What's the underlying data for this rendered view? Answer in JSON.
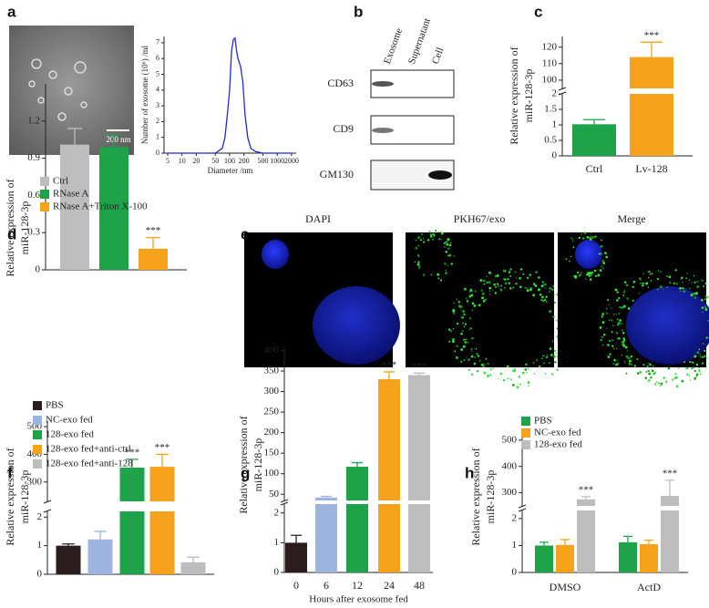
{
  "panel_labels": [
    "a",
    "b",
    "c",
    "d",
    "e",
    "f",
    "g",
    "h"
  ],
  "micrographs": {
    "scale_bar": "200 nm",
    "channels": [
      "DAPI",
      "PKH67/exo",
      "Merge"
    ]
  },
  "blot": {
    "lanes": [
      "Exosome",
      "Supernatant",
      "Cell"
    ],
    "proteins": [
      "CD63",
      "CD9",
      "GM130"
    ]
  },
  "chart_data": [
    {
      "type": "line",
      "x": [
        5,
        50,
        70,
        80,
        90,
        100,
        110,
        120,
        130,
        140,
        150,
        170,
        190,
        210,
        240,
        280,
        350,
        500,
        2000
      ],
      "series": [
        {
          "color": "#1f2bd0",
          "values": [
            0,
            0,
            0.3,
            1,
            2.5,
            4,
            6.5,
            7.2,
            7.3,
            6.5,
            6,
            5.5,
            4.5,
            2.5,
            1,
            0.3,
            0.1,
            0,
            0
          ]
        }
      ],
      "xlog": true,
      "xlim": [
        4.2,
        2500
      ],
      "xticks": [
        5,
        10,
        20,
        50,
        100,
        200,
        500,
        1000,
        2000
      ],
      "ylim": [
        0,
        7.4
      ],
      "yticks": [
        0,
        1,
        2,
        3,
        4,
        5,
        6,
        7
      ],
      "x_label": "Diameter /nm",
      "y_label": "Number of exosome (10⁶) /ml"
    },
    {
      "type": "bar",
      "categories": [
        "Ctrl",
        "Lv-128"
      ],
      "values": [
        1.02,
        114
      ],
      "errors": [
        0.15,
        9
      ],
      "colors": [
        "#1fa34a",
        "#f7a21b"
      ],
      "significance": [
        null,
        "***"
      ],
      "segments": [
        {
          "ylim": [
            0,
            2
          ],
          "yticks": [
            0,
            0.5,
            1,
            1.5,
            2
          ]
        },
        {
          "ylim": [
            95,
            126.5
          ],
          "yticks": [
            100,
            110,
            120
          ]
        }
      ],
      "y_label": [
        "Relative expression of",
        "miR-128-3p"
      ]
    },
    {
      "type": "bar",
      "categories": [
        null
      ],
      "series": [
        {
          "name": "Ctrl",
          "color": "#bdbdbd",
          "values": [
            1.01
          ],
          "errors": [
            0.13
          ],
          "significance": [
            null
          ]
        },
        {
          "name": "RNase A",
          "color": "#1fa34a",
          "values": [
            0.99
          ],
          "errors": [
            0.1
          ],
          "significance": [
            null
          ]
        },
        {
          "name": "RNase A+Triton X-100",
          "color": "#f7a21b",
          "values": [
            0.17
          ],
          "errors": [
            0.09
          ],
          "significance": [
            "***"
          ]
        }
      ],
      "segments": [
        {
          "ylim": [
            0,
            1.5
          ],
          "yticks": [
            0,
            0.3,
            0.6,
            0.9,
            1.2
          ]
        }
      ],
      "y_label": [
        "Relative expression of",
        "miR-128-3p"
      ]
    },
    {
      "type": "bar",
      "categories": [
        null
      ],
      "series": [
        {
          "name": "PBS",
          "color": "#2b1d1d",
          "values": [
            1.0
          ],
          "errors": [
            0.06
          ],
          "significance": [
            null
          ]
        },
        {
          "name": "NC-exo fed",
          "color": "#9db4e0",
          "values": [
            1.22
          ],
          "errors": [
            0.28
          ],
          "significance": [
            null
          ]
        },
        {
          "name": "128-exo fed",
          "color": "#1fa34a",
          "values": [
            352
          ],
          "errors": [
            30
          ],
          "significance": [
            "***"
          ]
        },
        {
          "name": "128-exo fed+anti-ctrl",
          "color": "#f7a21b",
          "values": [
            355
          ],
          "errors": [
            45
          ],
          "significance": [
            "***"
          ]
        },
        {
          "name": "128-exo fed+anti-128",
          "color": "#bdbdbd",
          "values": [
            0.42
          ],
          "errors": [
            0.18
          ],
          "significance": [
            null
          ]
        }
      ],
      "segments": [
        {
          "ylim": [
            0,
            2.2
          ],
          "yticks": [
            0,
            1,
            2
          ]
        },
        {
          "ylim": [
            230,
            520
          ],
          "yticks": [
            300,
            400,
            500
          ]
        }
      ],
      "y_label": [
        "Relative expression of",
        "miR-128-3p"
      ]
    },
    {
      "type": "bar",
      "categories": [
        "0",
        "6",
        "12",
        "24",
        "48"
      ],
      "values": [
        1.0,
        42,
        117,
        330,
        340
      ],
      "errors": [
        0.25,
        3,
        10,
        18,
        5
      ],
      "colors": [
        "#2b1d1d",
        "#9db4e0",
        "#1fa34a",
        "#f7a21b",
        "#bdbdbd"
      ],
      "significance": [
        null,
        null,
        null,
        "***",
        "***"
      ],
      "segments": [
        {
          "ylim": [
            0,
            2.3
          ],
          "yticks": [
            0,
            1,
            2
          ]
        },
        {
          "ylim": [
            35,
            410
          ],
          "yticks": [
            50,
            100,
            150,
            200,
            250,
            300,
            350,
            400
          ]
        }
      ],
      "x_label": "Hours after exosome fed",
      "y_label": [
        "Relative expression of",
        "miR-128-3p"
      ]
    },
    {
      "type": "bar",
      "categories": [
        "DMSO",
        "ActD"
      ],
      "series": [
        {
          "name": "PBS",
          "color": "#1fa34a",
          "values": [
            1.0,
            1.12
          ],
          "errors": [
            0.12,
            0.22
          ],
          "significance": [
            null,
            null
          ]
        },
        {
          "name": "NC-exo fed",
          "color": "#f7a21b",
          "values": [
            1.02,
            1.05
          ],
          "errors": [
            0.2,
            0.15
          ],
          "significance": [
            null,
            null
          ]
        },
        {
          "name": "128-exo fed",
          "color": "#bdbdbd",
          "values": [
            275,
            288
          ],
          "errors": [
            10,
            60
          ],
          "significance": [
            "***",
            "***"
          ]
        }
      ],
      "segments": [
        {
          "ylim": [
            0,
            2.3
          ],
          "yticks": [
            0,
            1,
            2
          ]
        },
        {
          "ylim": [
            250,
            510
          ],
          "yticks": [
            300,
            400,
            500
          ]
        }
      ],
      "y_label": [
        "Relative expression of",
        "miR-128-3p"
      ]
    }
  ]
}
